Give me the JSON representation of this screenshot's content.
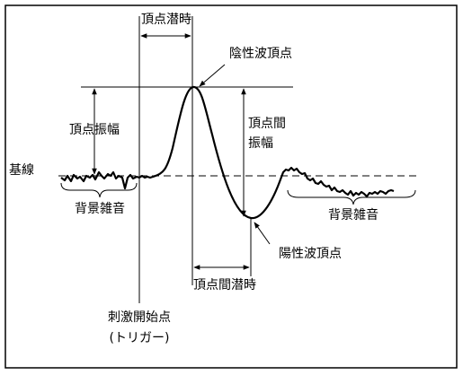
{
  "labels": {
    "peak_latency": "頂点潜時",
    "negative_peak": "陰性波頂点",
    "peak_amplitude": "頂点振幅",
    "interpeak_amplitude": [
      "頂点間",
      "振幅"
    ],
    "baseline": "基線",
    "background_noise_left": "背景雑音",
    "background_noise_right": "背景雑音",
    "positive_peak": "陽性波頂点",
    "interpeak_latency": "頂点間潜時",
    "stimulus_onset": [
      "刺激開始点",
      "(トリガー)"
    ]
  }
}
